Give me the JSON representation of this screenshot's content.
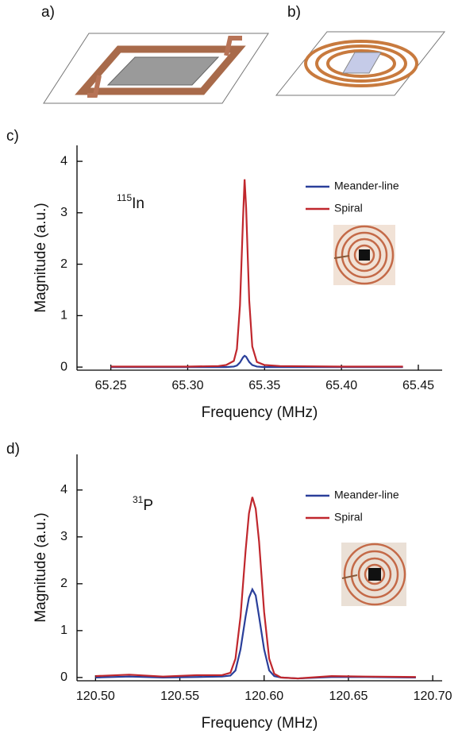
{
  "panels": [
    {
      "label": "a)"
    },
    {
      "label": "b)"
    }
  ],
  "chart_data": [
    {
      "type": "line",
      "panel_label": "c)",
      "xlabel": "Frequency (MHz)",
      "ylabel": "Magnitude (a.u.)",
      "annotation": {
        "sup": "115",
        "text": "In"
      },
      "legend": "upper right",
      "x": [
        65.25,
        65.3,
        65.32,
        65.325,
        65.33,
        65.332,
        65.334,
        65.336,
        65.337,
        65.338,
        65.34,
        65.342,
        65.345,
        65.35,
        65.36,
        65.4,
        65.44
      ],
      "series": [
        {
          "name": "Meander-line",
          "color": "#2a3f9a",
          "values": [
            0,
            0,
            0,
            0,
            0.01,
            0.03,
            0.09,
            0.19,
            0.22,
            0.2,
            0.1,
            0.04,
            0.01,
            0,
            0,
            0,
            0
          ]
        },
        {
          "name": "Spiral",
          "color": "#c0272d",
          "values": [
            0.01,
            0.01,
            0.02,
            0.04,
            0.12,
            0.35,
            1.2,
            2.9,
            3.65,
            3.1,
            1.3,
            0.4,
            0.1,
            0.04,
            0.02,
            0.01,
            0.01
          ]
        }
      ],
      "xlim": [
        65.228,
        65.4655
      ],
      "xticks": [
        65.25,
        {
          "value": 65.3,
          "label": "65.30"
        },
        65.35,
        {
          "value": 65.4,
          "label": "65.40"
        },
        65.45
      ],
      "ylim": [
        -0.06,
        4.31
      ],
      "yticks": [
        0,
        1,
        2,
        3,
        4
      ]
    },
    {
      "type": "line",
      "panel_label": "d)",
      "xlabel": "Frequency (MHz)",
      "ylabel": "Magnitude (a.u.)",
      "annotation": {
        "sup": "31",
        "text": "P"
      },
      "legend": "upper right",
      "x": [
        120.5,
        120.52,
        120.54,
        120.56,
        120.575,
        120.58,
        120.583,
        120.586,
        120.589,
        120.591,
        120.593,
        120.595,
        120.597,
        120.6,
        120.603,
        120.606,
        120.61,
        120.62,
        120.64,
        120.66,
        120.69
      ],
      "series": [
        {
          "name": "Meander-line",
          "color": "#2a3f9a",
          "values": [
            0,
            0.02,
            0,
            0.01,
            0.02,
            0.04,
            0.15,
            0.6,
            1.3,
            1.7,
            1.88,
            1.75,
            1.3,
            0.6,
            0.15,
            0.03,
            0,
            -0.02,
            0.01,
            0.01,
            0
          ]
        },
        {
          "name": "Spiral",
          "color": "#c0272d",
          "values": [
            0.03,
            0.06,
            0.02,
            0.05,
            0.05,
            0.1,
            0.4,
            1.3,
            2.7,
            3.5,
            3.85,
            3.6,
            2.9,
            1.4,
            0.4,
            0.08,
            0,
            -0.02,
            0.03,
            0.02,
            0.01
          ]
        }
      ],
      "xlim": [
        120.489,
        120.7056
      ],
      "xticks": [
        {
          "value": 120.5,
          "label": "120.50"
        },
        120.55,
        {
          "value": 120.6,
          "label": "120.60"
        },
        120.65,
        {
          "value": 120.7,
          "label": "120.70"
        }
      ],
      "ylim": [
        -0.07,
        4.76
      ],
      "yticks": [
        0,
        1,
        2,
        3,
        4
      ]
    }
  ]
}
